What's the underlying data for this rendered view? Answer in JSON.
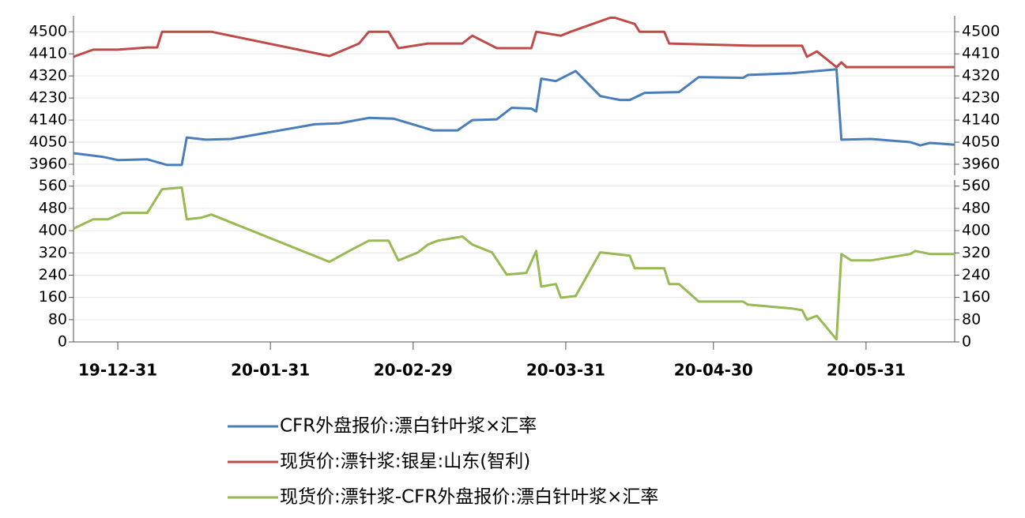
{
  "chart_data": [
    {
      "type": "line",
      "xlim": [
        "19-12-22",
        "20-06-18"
      ],
      "ylim": [
        3915,
        4565
      ],
      "yticks": [
        3960,
        4050,
        4140,
        4230,
        4320,
        4410,
        4500
      ],
      "grid": true,
      "series": [
        {
          "name": "CFR外盘报价:漂白针叶浆×汇率",
          "color": "#4a7ebb",
          "x": [
            "19-12-22",
            "19-12-28",
            "19-12-31",
            "20-01-06",
            "20-01-10",
            "20-01-13",
            "20-01-14",
            "20-01-18",
            "20-01-23",
            "20-02-09",
            "20-02-14",
            "20-02-20",
            "20-02-25",
            "20-03-04",
            "20-03-09",
            "20-03-12",
            "20-03-17",
            "20-03-20",
            "20-03-24",
            "20-03-25",
            "20-03-26",
            "20-03-29",
            "20-04-02",
            "20-04-07",
            "20-04-11",
            "20-04-13",
            "20-04-16",
            "20-04-23",
            "20-04-27",
            "20-05-06",
            "20-05-07",
            "20-05-16",
            "20-05-25",
            "20-05-26",
            "20-06-01",
            "20-06-09",
            "20-06-11",
            "20-06-13",
            "20-06-18"
          ],
          "values": [
            4005,
            3990,
            3977,
            3980,
            3957,
            3957,
            4069,
            4060,
            4063,
            4123,
            4127,
            4149,
            4146,
            4098,
            4098,
            4140,
            4143,
            4190,
            4187,
            4175,
            4309,
            4299,
            4340,
            4238,
            4222,
            4222,
            4251,
            4254,
            4315,
            4312,
            4324,
            4331,
            4347,
            4060,
            4063,
            4050,
            4037,
            4047,
            4040
          ]
        },
        {
          "name": "现货价:漂针浆:银星:山东(智利)",
          "color": "#be4b48",
          "x": [
            "19-12-22",
            "19-12-26",
            "19-12-31",
            "20-01-06",
            "20-01-08",
            "20-01-09",
            "20-01-19",
            "20-02-12",
            "20-02-18",
            "20-02-20",
            "20-02-24",
            "20-02-26",
            "20-03-03",
            "20-03-10",
            "20-03-12",
            "20-03-17",
            "20-03-24",
            "20-03-25",
            "20-03-30",
            "20-04-01",
            "20-04-09",
            "20-04-10",
            "20-04-14",
            "20-04-15",
            "20-04-20",
            "20-04-21",
            "20-05-08",
            "20-05-18",
            "20-05-19",
            "20-05-21",
            "20-05-25",
            "20-05-26",
            "20-05-27",
            "20-06-18"
          ],
          "values": [
            4398,
            4427,
            4427,
            4436,
            4436,
            4500,
            4500,
            4401,
            4452,
            4500,
            4500,
            4433,
            4452,
            4452,
            4484,
            4433,
            4433,
            4500,
            4484,
            4500,
            4557,
            4557,
            4532,
            4500,
            4500,
            4452,
            4443,
            4443,
            4398,
            4420,
            4356,
            4375,
            4356,
            4356
          ]
        }
      ]
    },
    {
      "type": "line",
      "xlim": [
        "19-12-22",
        "20-06-18"
      ],
      "ylim": [
        0,
        582
      ],
      "yticks": [
        0,
        80,
        160,
        240,
        320,
        400,
        480,
        560
      ],
      "grid": true,
      "xticks": [
        "19-12-31",
        "20-01-31",
        "20-02-29",
        "20-03-31",
        "20-04-30",
        "20-05-31"
      ],
      "series": [
        {
          "name": "现货价:漂针浆-CFR外盘报价:漂白针叶浆×汇率",
          "color": "#98b954",
          "x": [
            "19-12-22",
            "19-12-26",
            "19-12-29",
            "20-01-01",
            "20-01-06",
            "20-01-09",
            "20-01-13",
            "20-01-14",
            "20-01-17",
            "20-01-19",
            "20-02-12",
            "20-02-16",
            "20-02-20",
            "20-02-24",
            "20-02-26",
            "20-03-01",
            "20-03-03",
            "20-03-05",
            "20-03-10",
            "20-03-12",
            "20-03-16",
            "20-03-19",
            "20-03-23",
            "20-03-25",
            "20-03-26",
            "20-03-29",
            "20-03-30",
            "20-04-02",
            "20-04-07",
            "20-04-13",
            "20-04-14",
            "20-04-20",
            "20-04-21",
            "20-04-23",
            "20-04-27",
            "20-05-06",
            "20-05-07",
            "20-05-16",
            "20-05-18",
            "20-05-19",
            "20-05-21",
            "20-05-25",
            "20-05-26",
            "20-05-28",
            "20-06-01",
            "20-06-09",
            "20-06-10",
            "20-06-13",
            "20-06-18"
          ],
          "values": [
            407,
            441,
            441,
            464,
            464,
            549,
            555,
            441,
            447,
            458,
            288,
            327,
            364,
            364,
            293,
            322,
            350,
            364,
            379,
            350,
            322,
            242,
            248,
            327,
            199,
            208,
            159,
            165,
            322,
            310,
            265,
            265,
            208,
            208,
            145,
            145,
            134,
            120,
            114,
            80,
            94,
            9,
            316,
            293,
            293,
            316,
            327,
            316,
            316
          ]
        }
      ]
    }
  ]
}
